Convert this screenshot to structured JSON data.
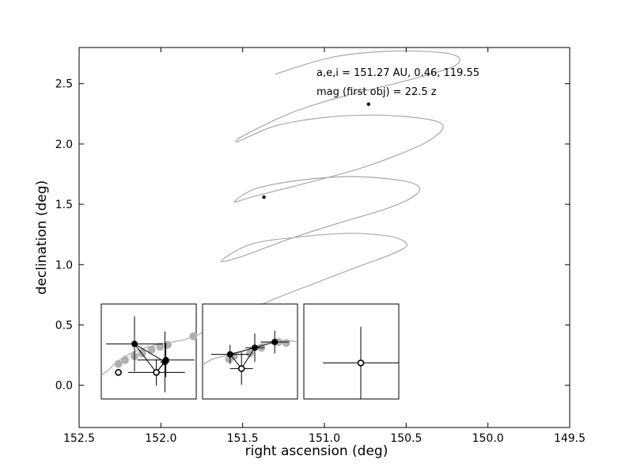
{
  "chart_data": {
    "type": "line",
    "title": "",
    "xlabel": "right ascension (deg)",
    "ylabel": "declination (deg)",
    "xlim": [
      152.5,
      149.5
    ],
    "ylim": [
      -0.35,
      2.8
    ],
    "x_ticks": [
      152.5,
      152.0,
      151.5,
      151.0,
      150.5,
      150.0,
      149.5
    ],
    "x_tick_labels": [
      "152.5",
      "152.0",
      "151.5",
      "151.0",
      "150.5",
      "150.0",
      "149.5"
    ],
    "y_ticks": [
      0.0,
      0.5,
      1.0,
      1.5,
      2.0,
      2.5
    ],
    "y_tick_labels": [
      "0.0",
      "0.5",
      "1.0",
      "1.5",
      "2.0",
      "2.5"
    ],
    "grid": false,
    "annotations": [
      "a,e,i = 151.27 AU, 0.46, 119.55",
      "mag (first obj) =  22.5 z"
    ],
    "series": [
      {
        "kind": "orbit_track",
        "color": "#a8a8a8",
        "x": [
          152.27,
          151.95,
          151.65,
          151.35,
          151.05,
          150.8,
          150.6,
          150.5,
          150.52,
          150.62,
          150.85,
          151.15,
          151.45,
          151.63,
          151.5,
          151.2,
          150.9,
          150.65,
          150.5,
          150.42,
          150.45,
          150.6,
          150.85,
          151.15,
          151.42,
          151.55,
          151.42,
          151.1,
          150.8,
          150.55,
          150.37,
          150.28,
          150.3,
          150.45,
          150.7,
          151.0,
          151.3,
          151.53,
          151.48,
          151.2,
          150.9,
          150.6,
          150.35,
          150.2,
          150.18,
          150.3,
          150.6,
          150.95,
          151.3
        ],
        "y": [
          0.1,
          0.3,
          0.5,
          0.69,
          0.85,
          0.98,
          1.08,
          1.15,
          1.2,
          1.24,
          1.26,
          1.23,
          1.17,
          1.03,
          1.07,
          1.22,
          1.35,
          1.45,
          1.53,
          1.61,
          1.67,
          1.71,
          1.73,
          1.7,
          1.63,
          1.52,
          1.57,
          1.68,
          1.79,
          1.91,
          2.02,
          2.12,
          2.18,
          2.22,
          2.24,
          2.22,
          2.15,
          2.02,
          2.08,
          2.26,
          2.39,
          2.49,
          2.58,
          2.65,
          2.72,
          2.76,
          2.77,
          2.72,
          2.58
        ]
      },
      {
        "kind": "detections",
        "color": "#000000",
        "x": [
          151.37,
          150.73
        ],
        "y": [
          1.56,
          2.33
        ]
      }
    ],
    "insets": [
      {
        "grey_track_x": [
          0,
          0.07,
          0.15,
          0.25,
          0.35,
          0.5,
          0.62,
          0.75,
          0.87,
          1.0
        ],
        "grey_track_y": [
          0.25,
          0.3,
          0.38,
          0.45,
          0.5,
          0.55,
          0.58,
          0.6,
          0.62,
          0.67
        ],
        "grey_points": [
          [
            0.18,
            0.37
          ],
          [
            0.25,
            0.41
          ],
          [
            0.35,
            0.45
          ],
          [
            0.43,
            0.48
          ],
          [
            0.53,
            0.52
          ],
          [
            0.62,
            0.55
          ],
          [
            0.7,
            0.57
          ],
          [
            0.97,
            0.66
          ]
        ],
        "black_points": [
          [
            0.35,
            0.58,
            0.3,
            0.29
          ],
          [
            0.67,
            0.39,
            0.05,
            0.32
          ],
          [
            0.68,
            0.41,
            0.3,
            0.18
          ]
        ],
        "open_points": [
          [
            0.58,
            0.28,
            0.3,
            0.14
          ],
          [
            0.18,
            0.28,
            0.0,
            0.0
          ]
        ],
        "links": [
          [
            0,
            1
          ],
          [
            0,
            3
          ],
          [
            1,
            3
          ],
          [
            2,
            3
          ]
        ]
      },
      {
        "grey_track_x": [
          0,
          0.1,
          0.22,
          0.35,
          0.48,
          0.62,
          0.75,
          0.88,
          1.0
        ],
        "grey_track_y": [
          0.36,
          0.42,
          0.45,
          0.48,
          0.52,
          0.58,
          0.61,
          0.62,
          0.6
        ],
        "grey_points": [
          [
            0.28,
            0.42
          ],
          [
            0.33,
            0.45
          ],
          [
            0.5,
            0.48
          ],
          [
            0.62,
            0.54
          ],
          [
            0.8,
            0.6
          ],
          [
            0.88,
            0.59
          ]
        ],
        "black_points": [
          [
            0.29,
            0.47,
            0.2,
            0.1
          ],
          [
            0.55,
            0.54,
            0.1,
            0.15
          ],
          [
            0.76,
            0.6,
            0.15,
            0.12
          ]
        ],
        "open_points": [
          [
            0.41,
            0.32,
            0.12,
            0.17
          ]
        ],
        "links": [
          [
            0,
            1
          ],
          [
            0,
            3
          ],
          [
            1,
            3
          ],
          [
            1,
            2
          ]
        ]
      },
      {
        "grey_track_x": [],
        "grey_track_y": [],
        "grey_points": [],
        "black_points": [],
        "open_points": [
          [
            0.6,
            0.38,
            0.4,
            0.38
          ]
        ],
        "links": []
      }
    ]
  }
}
